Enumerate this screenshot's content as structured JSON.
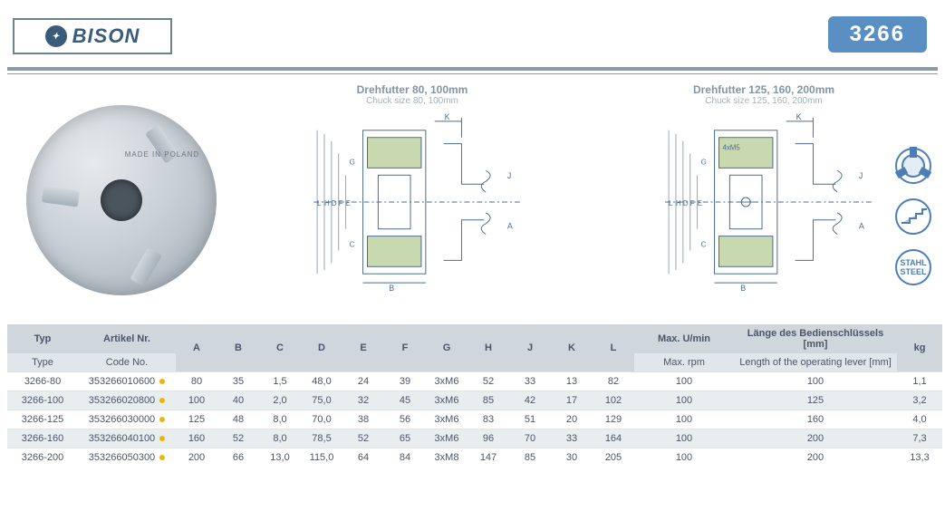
{
  "brand": {
    "text": "BISON"
  },
  "badge": "3266",
  "colors": {
    "header_border": "#6b838f",
    "brand_text": "#3a5b7a",
    "badge_bg": "#5a8fc4",
    "badge_fg": "#ffffff",
    "divider": "#8a9aa6",
    "drawing_stroke": "#4c6d8e",
    "hatch_fill": "#a5c07a",
    "title_gray": "#8295a5",
    "sub_gray": "#a3b1bb",
    "icon_stroke": "#4c7db3",
    "th_bg": "#cfd7dd",
    "th_sub_bg": "#e1e6ea",
    "row_alt_bg": "#e8edf0",
    "text": "#4a5568",
    "code_dot": "#f0b400"
  },
  "photo": {
    "label": "MADE IN POLAND"
  },
  "drawings": {
    "left": {
      "title": "Drehfutter 80, 100mm",
      "sub": "Chuck size 80, 100mm"
    },
    "right": {
      "title": "Drehfutter 125, 160, 200mm",
      "sub": "Chuck size 125, 160, 200mm"
    },
    "dims": {
      "top": "K",
      "leftletters": [
        "L",
        "H",
        "D",
        "F",
        "E",
        "G",
        "C"
      ],
      "right": [
        "J",
        "A"
      ],
      "bottom": "B",
      "right_extra": "4xM5"
    }
  },
  "icons": {
    "chuck_icon": "chuck-3jaw-icon",
    "jaw_icon": "step-jaw-icon",
    "steel_icon": "stahl-steel-icon",
    "steel_text_top": "STAHL",
    "steel_text_bot": "STEEL"
  },
  "table": {
    "header": {
      "typ": "Typ",
      "type": "Type",
      "artnr": "Artikel Nr.",
      "codeno": "Code No.",
      "cols": [
        "A",
        "B",
        "C",
        "D",
        "E",
        "F",
        "G",
        "H",
        "J",
        "K",
        "L"
      ],
      "rpm_top": "Max. U/min",
      "rpm_sub": "Max. rpm",
      "len_top": "Länge des Bedienschlüssels [mm]",
      "len_sub": "Length of the operating lever [mm]",
      "kg": "kg"
    },
    "rows": [
      {
        "type": "3266-80",
        "code": "353266010600",
        "A": "80",
        "B": "35",
        "C": "1,5",
        "D": "48,0",
        "E": "24",
        "F": "39",
        "G": "3xM6",
        "H": "52",
        "J": "33",
        "K": "13",
        "L": "82",
        "rpm": "100",
        "len": "100",
        "kg": "1,1"
      },
      {
        "type": "3266-100",
        "code": "353266020800",
        "A": "100",
        "B": "40",
        "C": "2,0",
        "D": "75,0",
        "E": "32",
        "F": "45",
        "G": "3xM6",
        "H": "85",
        "J": "42",
        "K": "17",
        "L": "102",
        "rpm": "100",
        "len": "125",
        "kg": "3,2"
      },
      {
        "type": "3266-125",
        "code": "353266030000",
        "A": "125",
        "B": "48",
        "C": "8,0",
        "D": "70,0",
        "E": "38",
        "F": "56",
        "G": "3xM6",
        "H": "83",
        "J": "51",
        "K": "20",
        "L": "129",
        "rpm": "100",
        "len": "160",
        "kg": "4,0"
      },
      {
        "type": "3266-160",
        "code": "353266040100",
        "A": "160",
        "B": "52",
        "C": "8,0",
        "D": "78,5",
        "E": "52",
        "F": "65",
        "G": "3xM6",
        "H": "96",
        "J": "70",
        "K": "33",
        "L": "164",
        "rpm": "100",
        "len": "200",
        "kg": "7,3"
      },
      {
        "type": "3266-200",
        "code": "353266050300",
        "A": "200",
        "B": "66",
        "C": "13,0",
        "D": "115,0",
        "E": "64",
        "F": "84",
        "G": "3xM8",
        "H": "147",
        "J": "85",
        "K": "30",
        "L": "205",
        "rpm": "100",
        "len": "200",
        "kg": "13,3"
      }
    ]
  }
}
